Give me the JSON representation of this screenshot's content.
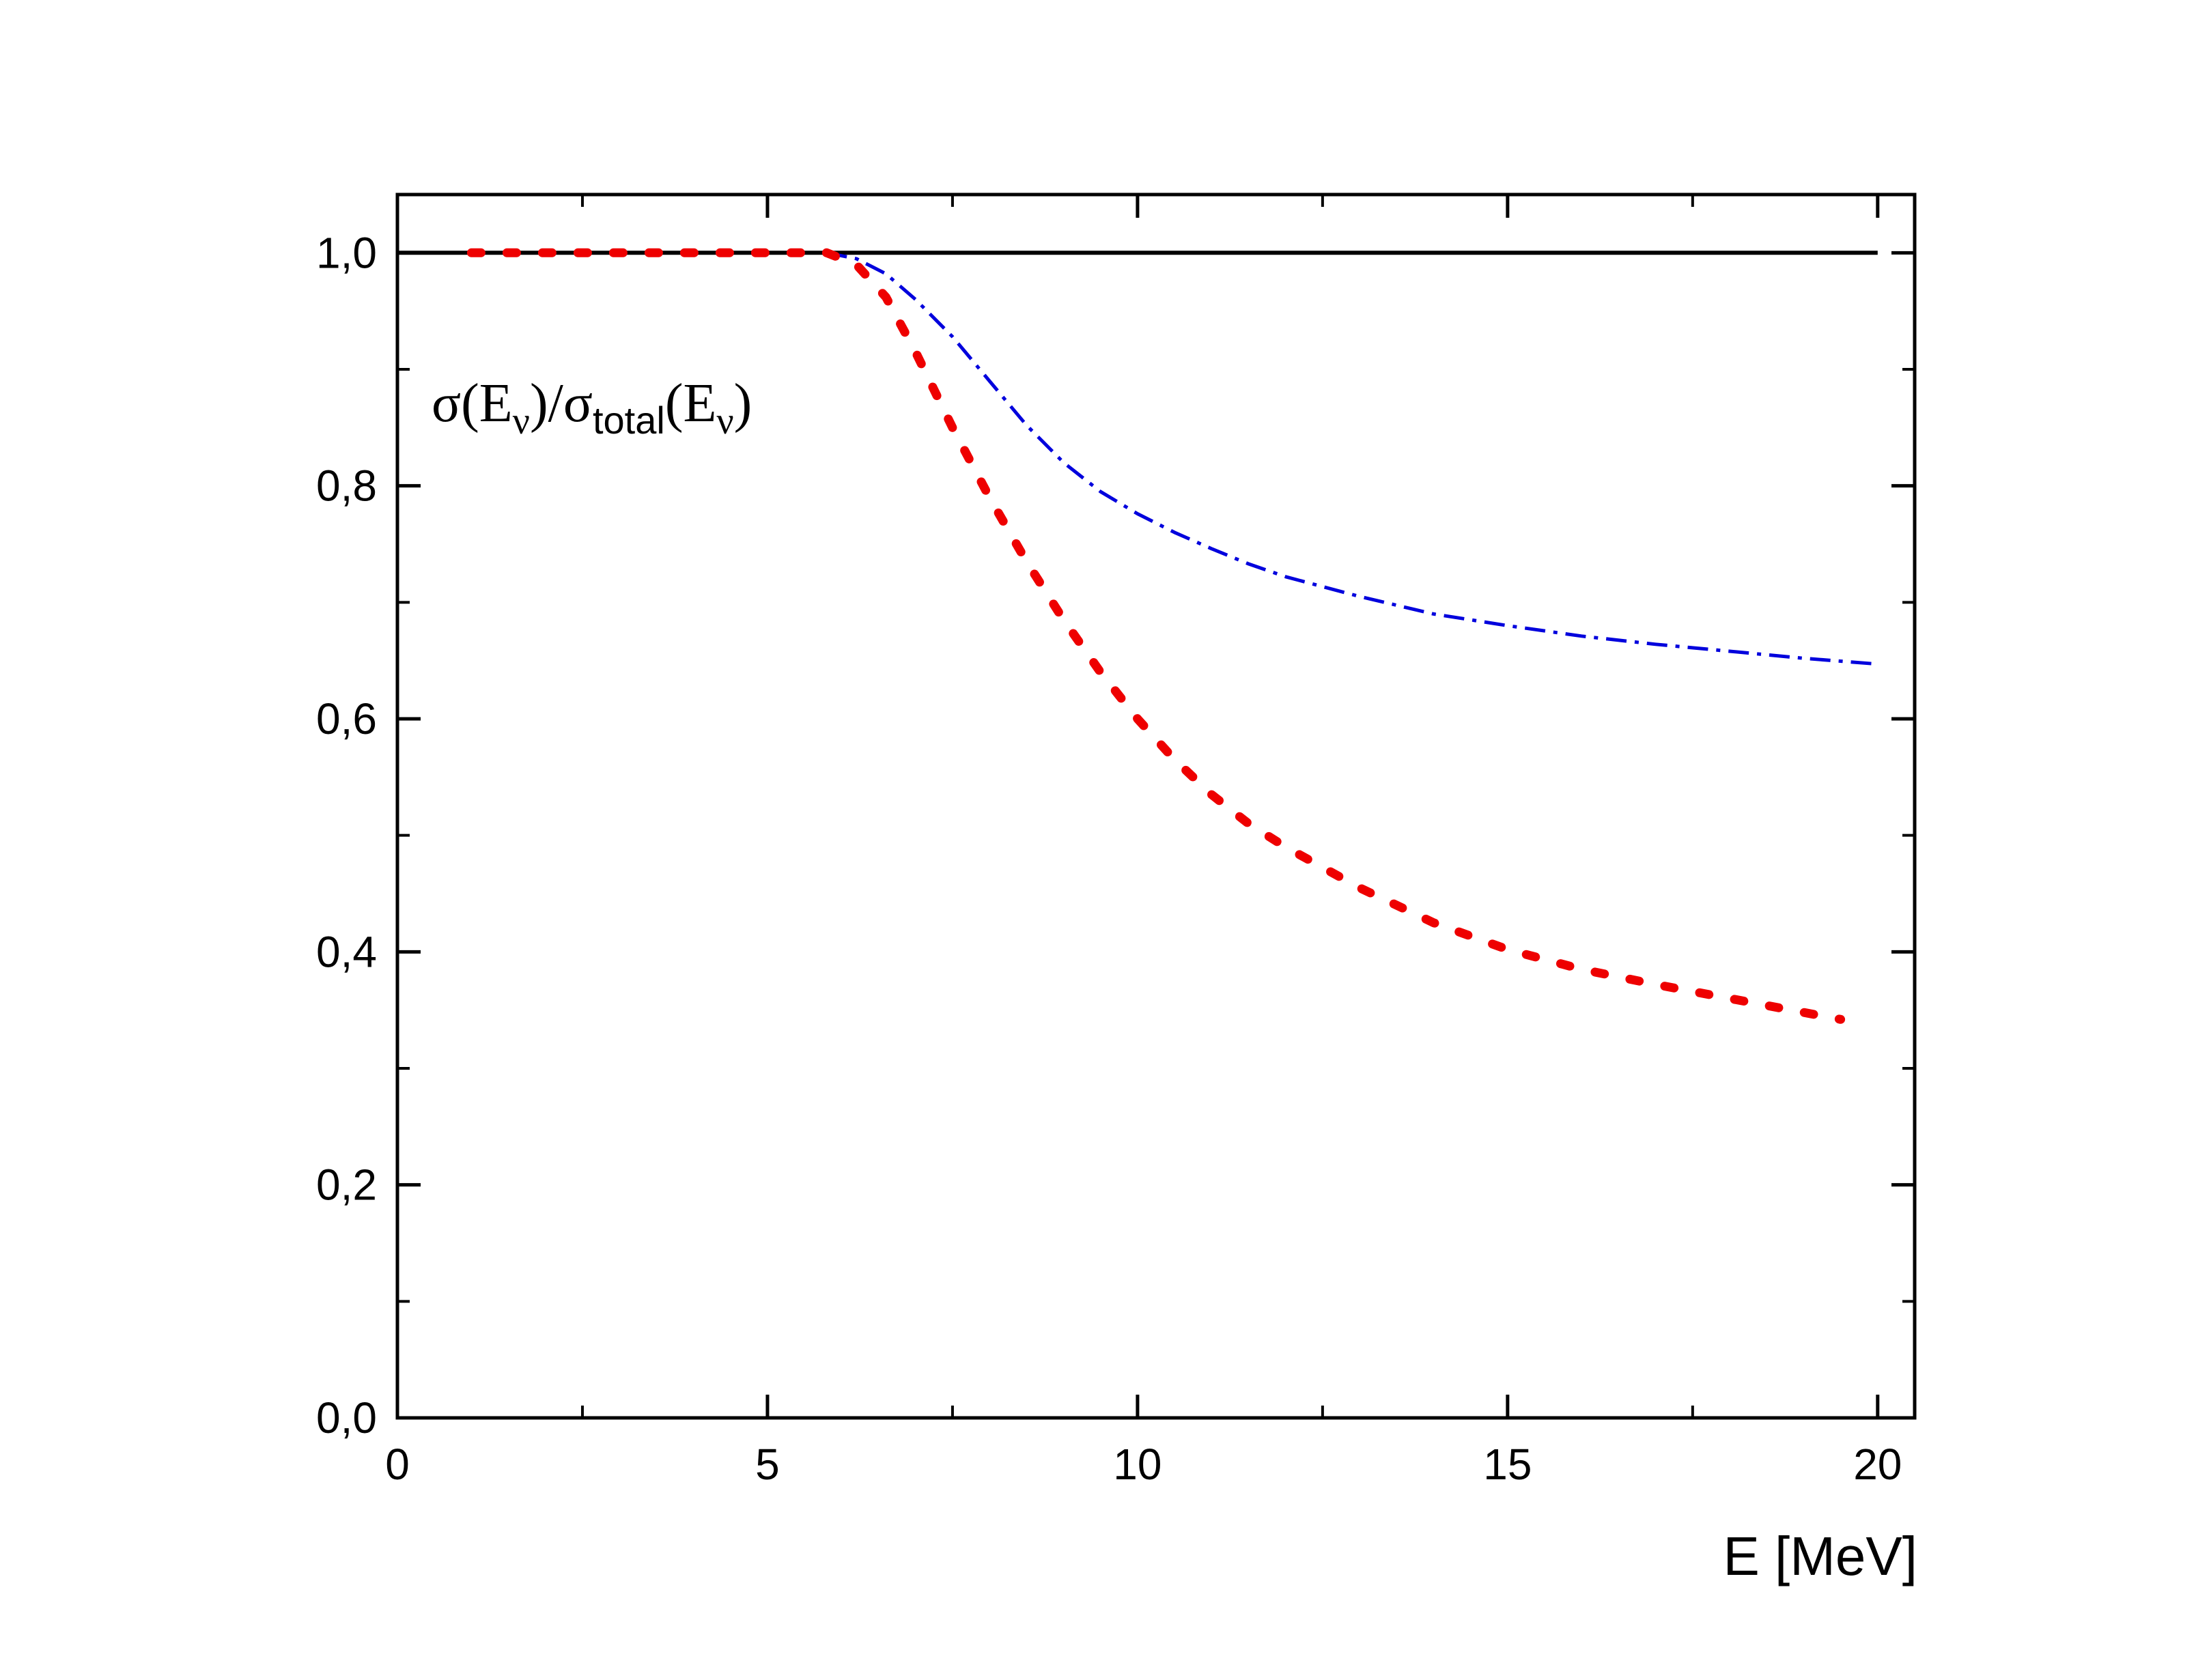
{
  "chart_data": {
    "type": "line",
    "title": "",
    "xlabel": "E [MeV]",
    "ylabel": {
      "sigma1": "σ",
      "open1": "(E",
      "sub1": "ν",
      "close1": ")/",
      "sigma2": "σ",
      "sub_total": "total",
      "open2": "(E",
      "sub2": "ν",
      "close2": ")"
    },
    "xlim": [
      0,
      20.5
    ],
    "ylim": [
      0,
      1.05
    ],
    "x_ticks": [
      0,
      5,
      10,
      15,
      20
    ],
    "x_tick_labels": [
      "0",
      "5",
      "10",
      "15",
      "20"
    ],
    "x_minor_ticks": [
      2.5,
      7.5,
      12.5,
      17.5
    ],
    "y_ticks": [
      0,
      0.2,
      0.4,
      0.6,
      0.8,
      1.0
    ],
    "y_tick_labels": [
      "0,0",
      "0,2",
      "0,4",
      "0,6",
      "0,8",
      "1,0"
    ],
    "y_minor_ticks": [
      0.1,
      0.3,
      0.5,
      0.7,
      0.9
    ],
    "series": [
      {
        "name": "total",
        "style": "solid",
        "color": "#000000",
        "x": [
          0,
          20
        ],
        "y": [
          1.0,
          1.0
        ]
      },
      {
        "name": "blue dash-dot",
        "style": "dashdot",
        "color": "#0000dd",
        "x": [
          5.8,
          6.2,
          6.6,
          7.0,
          7.5,
          8.0,
          8.5,
          9.0,
          9.5,
          10.0,
          10.5,
          11.0,
          11.5,
          12.0,
          13.0,
          14.0,
          15.0,
          16.0,
          17.0,
          18.0,
          19.0,
          20.0
        ],
        "y": [
          1.0,
          0.995,
          0.982,
          0.96,
          0.928,
          0.89,
          0.852,
          0.82,
          0.795,
          0.776,
          0.76,
          0.746,
          0.733,
          0.722,
          0.705,
          0.69,
          0.68,
          0.671,
          0.664,
          0.658,
          0.652,
          0.647
        ]
      },
      {
        "name": "red dotted",
        "style": "dotted",
        "color": "#ee0000",
        "x": [
          1.0,
          2.0,
          3.0,
          4.0,
          5.0,
          5.8,
          6.2,
          6.6,
          7.0,
          7.5,
          8.0,
          8.5,
          9.0,
          9.5,
          10.0,
          10.5,
          11.0,
          11.5,
          12.0,
          13.0,
          14.0,
          15.0,
          16.0,
          17.0,
          18.0,
          19.0,
          19.5
        ],
        "y": [
          1.0,
          1.0,
          1.0,
          1.0,
          1.0,
          1.0,
          0.99,
          0.962,
          0.915,
          0.85,
          0.79,
          0.735,
          0.685,
          0.64,
          0.6,
          0.565,
          0.535,
          0.51,
          0.49,
          0.455,
          0.425,
          0.402,
          0.385,
          0.372,
          0.36,
          0.348,
          0.342
        ]
      }
    ]
  }
}
